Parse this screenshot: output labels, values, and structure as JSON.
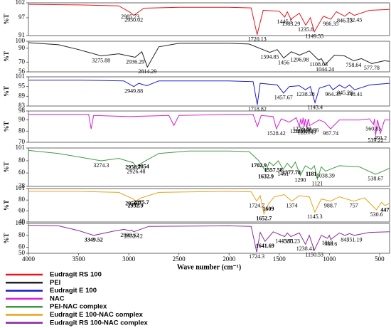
{
  "chart_data": [
    {
      "type": "line",
      "ylabel": "%T",
      "xlim": [
        4000,
        400
      ],
      "ylim": [
        91,
        102
      ],
      "yticks": [
        102,
        97,
        91
      ],
      "series": [
        {
          "name": "Eudragit RS 100",
          "color": "#e8151b",
          "x": [
            4000,
            3500,
            3100,
            2985.73,
            2950.02,
            2850,
            2500,
            2000,
            1780,
            1720.13,
            1660,
            1500,
            1445.5,
            1420,
            1383.29,
            1300,
            1235.8,
            1190,
            1149.55,
            1060,
            986.35,
            930,
            846.13,
            800,
            752.45,
            600,
            400
          ],
          "values": [
            101.5,
            101.3,
            101,
            98.8,
            97.8,
            100.2,
            100.5,
            100.5,
            100.3,
            91.3,
            99.5,
            99.2,
            97.2,
            99,
            96.5,
            98.5,
            94.5,
            97,
            92.3,
            97.5,
            96.5,
            99,
            97.5,
            98.8,
            97.8,
            99.5,
            99.8
          ]
        }
      ],
      "peaks": [
        {
          "value": 2985.73,
          "label": "2985.73"
        },
        {
          "value": 2950.02,
          "label": "2950.02"
        },
        {
          "value": 1720.13,
          "label": "1720.13"
        },
        {
          "value": 1445.5,
          "label": "1445.5"
        },
        {
          "value": 1383.29,
          "label": "1383.29"
        },
        {
          "value": 1235.8,
          "label": "1235.8"
        },
        {
          "value": 1149.55,
          "label": "1149.55"
        },
        {
          "value": 986.35,
          "label": "986.35"
        },
        {
          "value": 846.13,
          "label": "846.13"
        },
        {
          "value": 752.45,
          "label": "752.45"
        }
      ]
    },
    {
      "type": "line",
      "ylabel": "%T",
      "xlim": [
        4000,
        400
      ],
      "ylim": [
        56,
        100
      ],
      "yticks": [
        100,
        90,
        70,
        56
      ],
      "series": [
        {
          "name": "PEI",
          "color": "#222222",
          "x": [
            4000,
            3700,
            3500,
            3275.88,
            3100,
            2936.29,
            2870,
            2814.29,
            2700,
            2500,
            2000,
            1800,
            1594.85,
            1520,
            1456,
            1380,
            1296.98,
            1200,
            1108.03,
            1080,
            1044.24,
            950,
            850,
            758.64,
            680,
            577.78,
            450,
            400
          ],
          "values": [
            98,
            95,
            88,
            79,
            82,
            77,
            85,
            63,
            92,
            97,
            97,
            96,
            84,
            88,
            76,
            85,
            80,
            86,
            73,
            75,
            66,
            80,
            79,
            72,
            75,
            68,
            72,
            71
          ]
        }
      ],
      "peaks": [
        {
          "value": 3275.88,
          "label": "3275.88"
        },
        {
          "value": 2936.29,
          "label": "2936.29"
        },
        {
          "value": 2814.29,
          "label": "2814.29"
        },
        {
          "value": 1594.85,
          "label": "1594.85"
        },
        {
          "value": 1456,
          "label": "1456"
        },
        {
          "value": 1296.98,
          "label": "1296.98"
        },
        {
          "value": 1108.03,
          "label": "1108.03"
        },
        {
          "value": 1044.24,
          "label": "1044.24"
        },
        {
          "value": 758.64,
          "label": "758.64"
        },
        {
          "value": 577.78,
          "label": "577.78"
        }
      ]
    },
    {
      "type": "line",
      "ylabel": "%T",
      "xlim": [
        4000,
        400
      ],
      "ylim": [
        83,
        101
      ],
      "yticks": [
        101,
        95,
        89,
        83
      ],
      "series": [
        {
          "name": "Eudragit E 100",
          "color": "#1a1acc",
          "x": [
            4000,
            3500,
            3050,
            2949.88,
            2900,
            2820,
            2700,
            2000,
            1760,
            1718.82,
            1690,
            1520,
            1457.67,
            1400,
            1300,
            1238.38,
            1190,
            1143.4,
            1100,
            1000,
            964.35,
            900,
            845.28,
            800,
            748.41,
            600,
            400
          ],
          "values": [
            99,
            99,
            98.5,
            95,
            97,
            95.5,
            98.5,
            98.5,
            98,
            83.8,
            97,
            96,
            91,
            95,
            95.5,
            93,
            95,
            85,
            94,
            96,
            93,
            96,
            94,
            96,
            93,
            96,
            97
          ]
        }
      ],
      "peaks": [
        {
          "value": 2949.88,
          "label": "2949.88"
        },
        {
          "value": 1718.82,
          "label": "1718.82"
        },
        {
          "value": 1457.67,
          "label": "1457.67"
        },
        {
          "value": 1238.38,
          "label": "1238.38"
        },
        {
          "value": 1143.4,
          "label": "1143.4"
        },
        {
          "value": 964.35,
          "label": "964.35"
        },
        {
          "value": 845.28,
          "label": "845.28"
        },
        {
          "value": 748.41,
          "label": "748.41"
        }
      ]
    },
    {
      "type": "line",
      "ylabel": "%T",
      "xlim": [
        4000,
        400
      ],
      "ylim": [
        70,
        98
      ],
      "yticks": [
        98,
        90,
        80,
        70
      ],
      "series": [
        {
          "name": "NAC",
          "color": "#d61fd6",
          "x": [
            4000,
            3600,
            3400,
            3375,
            3350,
            3000,
            2600,
            2550,
            2500,
            2000,
            1760,
            1718,
            1680,
            1560,
            1528.42,
            1480,
            1400,
            1330,
            1299.97,
            1285,
            1273.29,
            1262,
            1251.97,
            1240,
            1226.49,
            1210,
            1196.86,
            1100,
            1050,
            987.74,
            900,
            700,
            600,
            560.85,
            550,
            539.22,
            520,
            491.2,
            450,
            400
          ],
          "values": [
            95,
            95,
            95,
            82,
            94,
            93,
            94,
            85,
            94,
            95,
            95,
            84,
            94,
            93,
            82,
            91,
            88,
            92,
            84,
            91,
            86,
            92,
            84,
            91,
            83,
            91,
            85,
            90,
            88,
            82,
            90,
            90,
            91,
            86,
            91,
            76,
            90,
            78,
            90,
            90
          ]
        }
      ],
      "peaks": [
        {
          "value": 1528.42,
          "label": "1528.42"
        },
        {
          "value": 1299.97,
          "label": "1299.97"
        },
        {
          "value": 1273.29,
          "label": "1273.29"
        },
        {
          "value": 1251.97,
          "label": "1251.97"
        },
        {
          "value": 1226.49,
          "label": "1226.49"
        },
        {
          "value": 1196.86,
          "label": "1196.86"
        },
        {
          "value": 987.74,
          "label": "987.74"
        },
        {
          "value": 560.85,
          "label": "560.85"
        },
        {
          "value": 539.22,
          "label": "539.22"
        },
        {
          "value": 491.2,
          "label": "491.2"
        }
      ]
    },
    {
      "type": "line",
      "ylabel": "%T",
      "xlim": [
        4000,
        400
      ],
      "ylim": [
        38,
        101
      ],
      "yticks": [
        101,
        80,
        60,
        38
      ],
      "series": [
        {
          "name": "PEI-NAC complex",
          "color": "#3f9a3f",
          "x": [
            4000,
            3700,
            3274.3,
            3100,
            2956.7,
            2926.48,
            2854,
            2700,
            2400,
            2000,
            1800,
            1702.9,
            1632.9,
            1600,
            1557.58,
            1510,
            1461,
            1420,
            1377.78,
            1340,
            1290,
            1240,
            1181,
            1150,
            1121,
            1080,
            1038.39,
            900,
            700,
            538.67,
            450,
            400
          ],
          "values": [
            97,
            92,
            80,
            84,
            77,
            70,
            78,
            92,
            96,
            96,
            95,
            80,
            62,
            78,
            72,
            80,
            66,
            76,
            68,
            78,
            56,
            72,
            66,
            72,
            50,
            70,
            63,
            72,
            70,
            58,
            64,
            68
          ]
        }
      ],
      "peaks": [
        {
          "value": 3274.3,
          "label": "3274.3"
        },
        {
          "value": 2956.7,
          "label": "2956.7",
          "color": "#e00000"
        },
        {
          "value": 2926.48,
          "label": "2926.48"
        },
        {
          "value": 2854,
          "label": "2854",
          "color": "#e00000"
        },
        {
          "value": 1702.9,
          "label": "1702.9",
          "color": "#e00000"
        },
        {
          "value": 1632.9,
          "label": "1632.9",
          "color": "#e00000"
        },
        {
          "value": 1557.58,
          "label": "1557.58",
          "color": "#e00000"
        },
        {
          "value": 1461,
          "label": "1461"
        },
        {
          "value": 1377.78,
          "label": "1377.78",
          "color": "#e00000"
        },
        {
          "value": 1290,
          "label": "1290"
        },
        {
          "value": 1181,
          "label": "1181",
          "color": "#e00000"
        },
        {
          "value": 1121,
          "label": "1121"
        },
        {
          "value": 1038.39,
          "label": "1038.39"
        },
        {
          "value": 538.67,
          "label": "538.67"
        }
      ]
    },
    {
      "type": "line",
      "ylabel": "%T",
      "xlim": [
        4000,
        400
      ],
      "ylim": [
        40,
        101
      ],
      "yticks": [
        101,
        80,
        60,
        40
      ],
      "series": [
        {
          "name": "Eudragit E 100-NAC complex",
          "color": "#e8a21a",
          "x": [
            4000,
            3500,
            3100,
            2956.7,
            2932.9,
            2875.7,
            2700,
            2000,
            1780,
            1724.7,
            1690,
            1652.7,
            1609,
            1550,
            1450,
            1374,
            1300,
            1200,
            1145.3,
            1080,
            988.7,
            900,
            757,
            650,
            530.6,
            480,
            447,
            400
          ],
          "values": [
            96,
            96,
            94,
            82,
            78,
            84,
            94,
            96,
            95,
            78,
            88,
            55,
            72,
            86,
            90,
            78,
            88,
            86,
            58,
            82,
            78,
            86,
            78,
            84,
            62,
            76,
            70,
            74
          ]
        }
      ],
      "peaks": [
        {
          "value": 2956.7,
          "label": "2956.7",
          "color": "#e00000"
        },
        {
          "value": 2932.9,
          "label": "2932.9",
          "color": "#e00000"
        },
        {
          "value": 2875.7,
          "label": "2875.7",
          "color": "#e00000"
        },
        {
          "value": 1724.7,
          "label": "1724.7"
        },
        {
          "value": 1652.7,
          "label": "1652.7",
          "color": "#e00000"
        },
        {
          "value": 1609,
          "label": "1609",
          "color": "#e00000"
        },
        {
          "value": 1374,
          "label": "1374"
        },
        {
          "value": 1145.3,
          "label": "1145.3"
        },
        {
          "value": 988.7,
          "label": "988.7"
        },
        {
          "value": 757,
          "label": "757"
        },
        {
          "value": 530.6,
          "label": "530.6"
        },
        {
          "value": 447,
          "label": "447",
          "color": "#e00000"
        }
      ]
    },
    {
      "type": "line",
      "ylabel": "%T",
      "xlabel": "Wave number (cm⁻¹)",
      "xlim": [
        4000,
        400
      ],
      "ylim": [
        50,
        100
      ],
      "yticks": [
        100,
        80,
        60,
        50
      ],
      "xticks": [
        4000,
        3500,
        3000,
        2500,
        2000,
        1500,
        1000,
        500
      ],
      "series": [
        {
          "name": "Eudragit RS 100-NAC complex",
          "color": "#8a2a9e",
          "x": [
            4000,
            3700,
            3500,
            3349.52,
            3150,
            3050,
            2990.62,
            2970,
            2952.12,
            2800,
            2000,
            1780,
            1724.3,
            1690,
            1641.69,
            1560,
            1445.91,
            1420,
            1385.23,
            1300,
            1238.41,
            1200,
            1150.53,
            1080,
            1019,
            1000,
            986.6,
            900,
            845,
            800,
            751.19,
            600,
            400
          ],
          "values": [
            97,
            96,
            88,
            80,
            87,
            90,
            88,
            89,
            86,
            95,
            96,
            95,
            52,
            85,
            70,
            86,
            78,
            84,
            78,
            84,
            65,
            80,
            55,
            80,
            75,
            80,
            73,
            84,
            80,
            83,
            80,
            85,
            86
          ]
        }
      ],
      "peaks": [
        {
          "value": 3349.52,
          "label": "3349.52",
          "color": "#e00000"
        },
        {
          "value": 2990.62,
          "label": "2990.62"
        },
        {
          "value": 2952.12,
          "label": "2952.12"
        },
        {
          "value": 1724.3,
          "label": "1724.3"
        },
        {
          "value": 1641.69,
          "label": "1641.69",
          "color": "#e00000"
        },
        {
          "value": 1445.91,
          "label": "1445.91"
        },
        {
          "value": 1385.23,
          "label": "1385.23"
        },
        {
          "value": 1238.41,
          "label": "1238.41"
        },
        {
          "value": 1150.53,
          "label": "1150.53"
        },
        {
          "value": 1019,
          "label": "1019"
        },
        {
          "value": 986.6,
          "label": "986.6"
        },
        {
          "value": 845,
          "label": "845"
        },
        {
          "value": 751.19,
          "label": "751.19"
        }
      ]
    }
  ]
}
